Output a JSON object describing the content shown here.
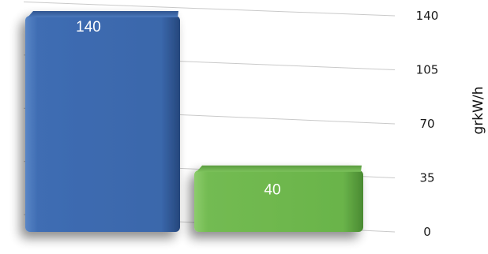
{
  "chart_data": {
    "type": "bar",
    "title": "",
    "xlabel": "",
    "ylabel": "grkW/h",
    "categories": [
      "",
      ""
    ],
    "values": [
      140,
      40
    ],
    "data_labels": [
      "140",
      "40"
    ],
    "bar_colors": [
      "#3a68ad",
      "#6cb54c"
    ],
    "ylim": [
      0,
      140
    ],
    "yticks": [
      0,
      35,
      70,
      105,
      140
    ],
    "ytick_labels": [
      "0",
      "35",
      "70",
      "105",
      "140"
    ],
    "y_axis_side": "right",
    "grid": true,
    "legend": "none"
  }
}
